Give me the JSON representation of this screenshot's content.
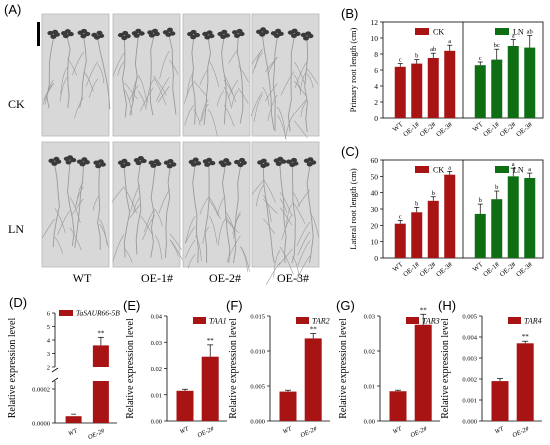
{
  "colors": {
    "bar": "#a81414",
    "bar_ln": "#0f6e14",
    "photo_bg": "#d8d8d8",
    "photo_edge": "#b8b8b8",
    "plant": "#3a3a3a",
    "root": "#9a9a9a"
  },
  "photo_panel": {
    "label": "(A)",
    "rows": [
      "CK",
      "LN"
    ],
    "columns": [
      "WT",
      "OE-1#",
      "OE-2#",
      "OE-3#"
    ]
  },
  "chart_data": [
    {
      "id": "B",
      "label": "(B)",
      "type": "bar",
      "ylabel": "Primary root length (cm)",
      "ylim": [
        0,
        12
      ],
      "yticks": [
        0,
        2,
        4,
        6,
        8,
        10,
        12
      ],
      "categories": [
        "WT",
        "OE-1#",
        "OE-2#",
        "OE-3#"
      ],
      "groups": [
        {
          "name": "CK",
          "color": "#a81414",
          "values": [
            6.4,
            6.8,
            7.5,
            8.4
          ],
          "errors": [
            0.4,
            0.5,
            0.6,
            0.7
          ],
          "letters": [
            "c",
            "b",
            "ab",
            "a"
          ]
        },
        {
          "name": "LN",
          "color": "#0f6e14",
          "values": [
            6.6,
            7.3,
            9.0,
            8.8
          ],
          "errors": [
            0.4,
            1.3,
            0.8,
            1.5
          ],
          "letters": [
            "c",
            "bc",
            "a",
            "ab"
          ]
        }
      ]
    },
    {
      "id": "C",
      "label": "(C)",
      "type": "bar",
      "ylabel": "Lateral root length (cm)",
      "ylim": [
        0,
        60
      ],
      "yticks": [
        0,
        10,
        20,
        30,
        40,
        50,
        60
      ],
      "categories": [
        "WT",
        "OE-1#",
        "OE-2#",
        "OE-3#"
      ],
      "groups": [
        {
          "name": "CK",
          "color": "#a81414",
          "values": [
            21.0,
            28.0,
            35.0,
            51.0
          ],
          "errors": [
            2.0,
            3.0,
            2.5,
            2.0
          ],
          "letters": [
            "c",
            "b",
            "b",
            "a"
          ]
        },
        {
          "name": "LN",
          "color": "#0f6e14",
          "values": [
            27.0,
            36.0,
            50.0,
            49.0
          ],
          "errors": [
            6.0,
            5.0,
            5.0,
            3.0
          ],
          "letters": [
            "b",
            "b",
            "a",
            "a"
          ]
        }
      ]
    },
    {
      "id": "D",
      "label": "(D)",
      "type": "bar",
      "legend": "TaSAUR66-5B",
      "ylabel": "Relative expression level",
      "broken_axis": {
        "lower_ticks": [
          "0.0000",
          "0.0002"
        ],
        "upper_ticks": [
          "2",
          "3",
          "4",
          "5",
          "6"
        ]
      },
      "categories": [
        "WT",
        "OE-2#"
      ],
      "values": [
        4e-05,
        3.6
      ],
      "errors": [
        1.2e-05,
        0.6
      ],
      "letters": [
        "",
        "**"
      ]
    },
    {
      "id": "E",
      "label": "(E)",
      "type": "bar",
      "legend": "TAA1",
      "ylabel": "Relative expression level",
      "ylim": [
        0,
        0.04
      ],
      "yticks": [
        "0.00",
        "0.01",
        "0.02",
        "0.03",
        "0.04"
      ],
      "ytick_values": [
        0,
        0.01,
        0.02,
        0.03,
        0.04
      ],
      "categories": [
        "WT",
        "OE-2#"
      ],
      "values": [
        0.0115,
        0.0245
      ],
      "errors": [
        0.0006,
        0.0045
      ],
      "letters": [
        "",
        "**"
      ]
    },
    {
      "id": "F",
      "label": "(F)",
      "type": "bar",
      "legend": "TAR2",
      "ylabel": "Relative expression level",
      "ylim": [
        0,
        0.015
      ],
      "yticks": [
        "0.000",
        "0.005",
        "0.010",
        "0.015"
      ],
      "ytick_values": [
        0,
        0.005,
        0.01,
        0.015
      ],
      "categories": [
        "WT",
        "OE-2#"
      ],
      "values": [
        0.0042,
        0.0118
      ],
      "errors": [
        0.0002,
        0.0007
      ],
      "letters": [
        "",
        "**"
      ]
    },
    {
      "id": "G",
      "label": "(G)",
      "type": "bar",
      "legend": "TAR3",
      "ylabel": "Relative expression level",
      "ylim": [
        0,
        0.03
      ],
      "yticks": [
        "0.00",
        "0.01",
        "0.02",
        "0.03"
      ],
      "ytick_values": [
        0,
        0.01,
        0.02,
        0.03
      ],
      "categories": [
        "WT",
        "OE-2#"
      ],
      "values": [
        0.0085,
        0.0275
      ],
      "errors": [
        0.0003,
        0.003
      ],
      "letters": [
        "",
        "**"
      ]
    },
    {
      "id": "H",
      "label": "(H)",
      "type": "bar",
      "legend": "TAR4",
      "ylabel": "Relative expression level",
      "ylim": [
        0,
        0.005
      ],
      "yticks": [
        "0.000",
        "0.001",
        "0.002",
        "0.003",
        "0.004",
        "0.005"
      ],
      "ytick_values": [
        0,
        0.001,
        0.002,
        0.003,
        0.004,
        0.005
      ],
      "categories": [
        "WT",
        "OE-2#"
      ],
      "values": [
        0.0019,
        0.0037
      ],
      "errors": [
        0.00012,
        0.0001
      ],
      "letters": [
        "",
        "**"
      ]
    }
  ]
}
